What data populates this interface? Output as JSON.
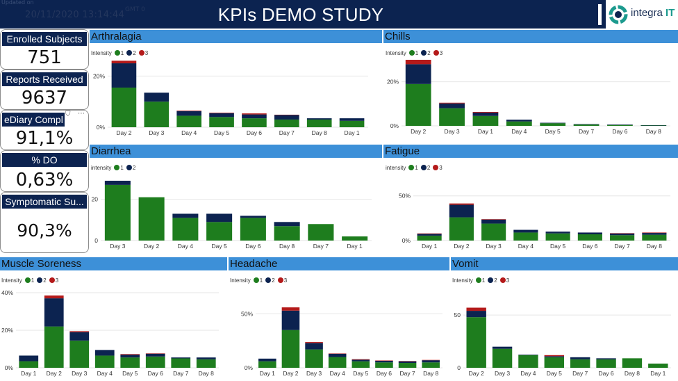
{
  "header": {
    "updated_label": "Updated on",
    "updated_value": "20/11/2020 13:14:44",
    "timezone": "GMT 0",
    "title": "KPIs DEMO STUDY",
    "logo_text": "integra",
    "logo_suffix": "IT"
  },
  "kpis": [
    {
      "label": "Enrolled Subjects",
      "value": "751"
    },
    {
      "label": "Reports Received",
      "value": "9637"
    },
    {
      "label": "eDiary Compl",
      "value": "91,1%"
    },
    {
      "label": "% DO",
      "value": "0,63%"
    },
    {
      "label": "Symptomatic Su...",
      "value": "90,3%"
    }
  ],
  "icons": {
    "filter": "filter-icon",
    "more": "more-options-icon"
  },
  "colors": {
    "intensity_1": "#1e7d1e",
    "intensity_2": "#0c2350",
    "intensity_3": "#b41a1a",
    "title_bar": "#3d90d8",
    "header": "#0c2350"
  },
  "chart_data": [
    {
      "type": "bar",
      "stacked": true,
      "title": "Arthralagia",
      "legend_title": "Intensity",
      "categories": [
        "Day 2",
        "Day 3",
        "Day 4",
        "Day 5",
        "Day 6",
        "Day 7",
        "Day 8",
        "Day 1"
      ],
      "series": [
        {
          "name": "1",
          "values": [
            15.5,
            10,
            4.5,
            4,
            3.5,
            3,
            3,
            2.5
          ]
        },
        {
          "name": "2",
          "values": [
            9.5,
            3.5,
            1.8,
            1.5,
            1.5,
            1.8,
            0.5,
            1
          ]
        },
        {
          "name": "3",
          "values": [
            1,
            0,
            0.2,
            0.2,
            0.4,
            0.1,
            0,
            0
          ]
        }
      ],
      "yticks": [
        "0%",
        "20%"
      ],
      "ytick_values": [
        0,
        20
      ],
      "ylim": [
        0,
        28
      ]
    },
    {
      "type": "bar",
      "stacked": true,
      "title": "Chills",
      "legend_title": "Intensity",
      "categories": [
        "Day 2",
        "Day 3",
        "Day 1",
        "Day 4",
        "Day 5",
        "Day 7",
        "Day 6",
        "Day 8"
      ],
      "series": [
        {
          "name": "1",
          "values": [
            19,
            8,
            4.5,
            2,
            1.2,
            0.6,
            0.4,
            0.2
          ]
        },
        {
          "name": "2",
          "values": [
            9,
            2.2,
            1.5,
            0.8,
            0.2,
            0.2,
            0.2,
            0.1
          ]
        },
        {
          "name": "3",
          "values": [
            2,
            0.3,
            0.3,
            0,
            0,
            0,
            0,
            0
          ]
        }
      ],
      "yticks": [
        "0%",
        "20%"
      ],
      "ytick_values": [
        0,
        20
      ],
      "ylim": [
        0,
        30
      ]
    },
    {
      "type": "bar",
      "stacked": true,
      "title": "Diarrhea",
      "legend_title": "intensity",
      "categories": [
        "Day 3",
        "Day 2",
        "Day 4",
        "Day 5",
        "Day 6",
        "Day 8",
        "Day 7",
        "Day 1"
      ],
      "series": [
        {
          "name": "1",
          "values": [
            27,
            21,
            11,
            9,
            11,
            7,
            8,
            2
          ]
        },
        {
          "name": "2",
          "values": [
            2,
            0,
            2,
            4,
            1,
            2,
            0,
            0
          ]
        }
      ],
      "yticks": [
        "0",
        "20"
      ],
      "ytick_values": [
        0,
        20
      ],
      "ylim": [
        0,
        30
      ]
    },
    {
      "type": "bar",
      "stacked": true,
      "title": "Fatigue",
      "legend_title": "intensity",
      "categories": [
        "Day 1",
        "Day 2",
        "Day 3",
        "Day 4",
        "Day 5",
        "Day 6",
        "Day 7",
        "Day 8"
      ],
      "series": [
        {
          "name": "1",
          "values": [
            5.5,
            26,
            19,
            9,
            8,
            7,
            6,
            6.5
          ]
        },
        {
          "name": "2",
          "values": [
            2,
            14,
            4.5,
            3,
            2,
            2,
            2,
            2
          ]
        },
        {
          "name": "3",
          "values": [
            0.5,
            1.5,
            0.5,
            0,
            0,
            0,
            0.3,
            0.5
          ]
        }
      ],
      "yticks": [
        "0%",
        "50%"
      ],
      "ytick_values": [
        0,
        50
      ],
      "ylim": [
        0,
        56
      ]
    },
    {
      "type": "bar",
      "stacked": true,
      "title": "Muscle Soreness",
      "legend_title": "Intensity",
      "categories": [
        "Day 1",
        "Day 2",
        "Day 3",
        "Day 4",
        "Day 5",
        "Day 6",
        "Day 7",
        "Day 8"
      ],
      "series": [
        {
          "name": "1",
          "values": [
            3.5,
            22,
            14.5,
            6.5,
            5.5,
            6,
            5,
            4.5
          ]
        },
        {
          "name": "2",
          "values": [
            3,
            15,
            4.5,
            3,
            1.5,
            1.5,
            0.5,
            1
          ]
        },
        {
          "name": "3",
          "values": [
            0,
            1.5,
            0.5,
            0,
            0.3,
            0.2,
            0,
            0
          ]
        }
      ],
      "yticks": [
        "0%",
        "20%",
        "40%"
      ],
      "ytick_values": [
        0,
        20,
        40
      ],
      "ylim": [
        0,
        40
      ]
    },
    {
      "type": "bar",
      "stacked": true,
      "title": "Headache",
      "legend_title": "Intensity",
      "categories": [
        "Day 1",
        "Day 2",
        "Day 3",
        "Day 4",
        "Day 5",
        "Day 6",
        "Day 7",
        "Day 8"
      ],
      "series": [
        {
          "name": "1",
          "values": [
            6,
            35,
            17,
            10,
            6,
            5,
            4.5,
            5
          ]
        },
        {
          "name": "2",
          "values": [
            2.5,
            18,
            6,
            3,
            1.5,
            1.5,
            1.5,
            2
          ]
        },
        {
          "name": "3",
          "values": [
            0,
            3,
            0.8,
            0.3,
            0.5,
            0.3,
            0.3,
            0.3
          ]
        }
      ],
      "yticks": [
        "0%",
        "50%"
      ],
      "ytick_values": [
        0,
        50
      ],
      "ylim": [
        0,
        58
      ]
    },
    {
      "type": "bar",
      "stacked": true,
      "title": "Vomit",
      "legend_title": "Intensity",
      "categories": [
        "Day 2",
        "Day 3",
        "Day 4",
        "Day 5",
        "Day 7",
        "Day 6",
        "Day 8",
        "Day 1"
      ],
      "series": [
        {
          "name": "1",
          "values": [
            48,
            18,
            12,
            10,
            8,
            8,
            9,
            4
          ]
        },
        {
          "name": "2",
          "values": [
            6,
            2,
            0.5,
            1,
            2,
            1,
            0,
            0
          ]
        },
        {
          "name": "3",
          "values": [
            3,
            0,
            0,
            1,
            0,
            0,
            0,
            0
          ]
        }
      ],
      "yticks": [
        "0",
        "50"
      ],
      "ytick_values": [
        0,
        50
      ],
      "ylim": [
        0,
        58
      ]
    }
  ]
}
